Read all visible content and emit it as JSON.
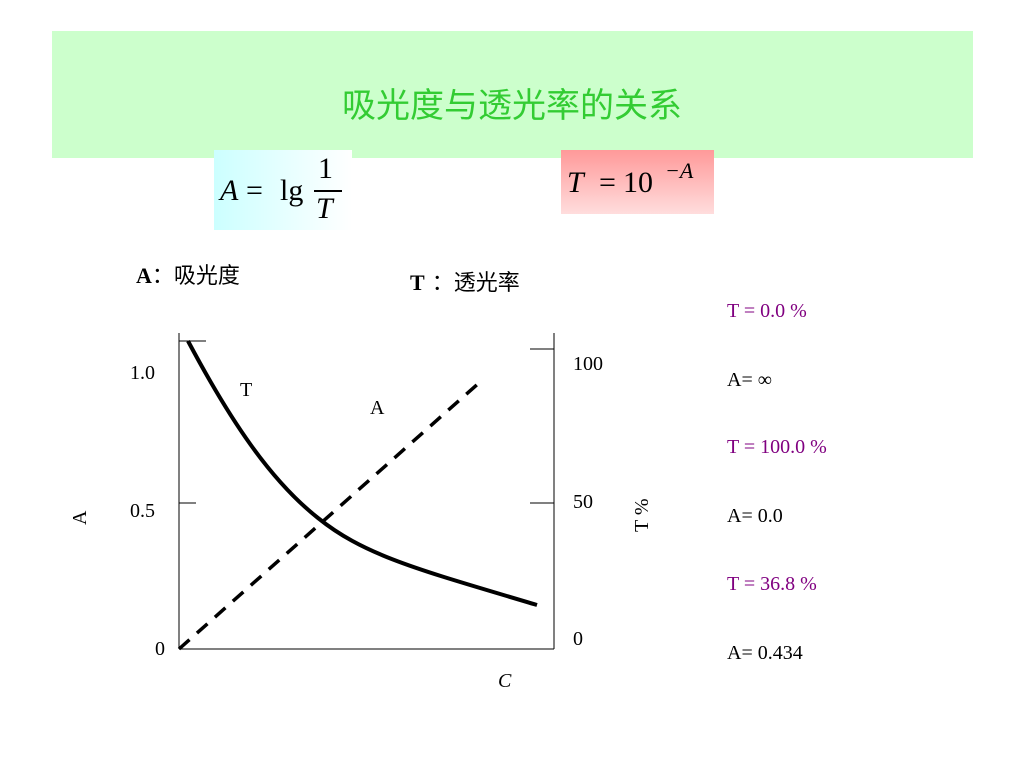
{
  "title": "吸光度与透光率的关系",
  "formula_a": {
    "lhs": "A",
    "eq": "=",
    "lg": "lg",
    "num": "1",
    "den": "T"
  },
  "formula_t": {
    "lhs": "T",
    "eq": "=",
    "base": "10",
    "exp": "−A"
  },
  "legend": {
    "a_sym": "A",
    "a_sep": "：",
    "a_text": "吸光度",
    "t_sym": "T",
    "t_sep": "：",
    "t_text": "透光率"
  },
  "chart": {
    "left_axis_label": "A",
    "right_axis_label": "T %",
    "x_axis_label": "C",
    "left_ticks": [
      "1.0",
      "0.5",
      "0"
    ],
    "right_ticks": [
      "100",
      "50",
      "0"
    ],
    "curve_labels": {
      "t": "T",
      "a": "A"
    }
  },
  "side_notes": [
    {
      "t": "T = 0.0 %",
      "a": "A= ∞"
    },
    {
      "t": "T = 100.0 %",
      "a": "A= 0.0"
    },
    {
      "t": "T = 36.8 %",
      "a": "A= 0.434"
    }
  ],
  "colors": {
    "band": "#ccffcc",
    "title": "#33cc33",
    "t_note": "#800080"
  }
}
